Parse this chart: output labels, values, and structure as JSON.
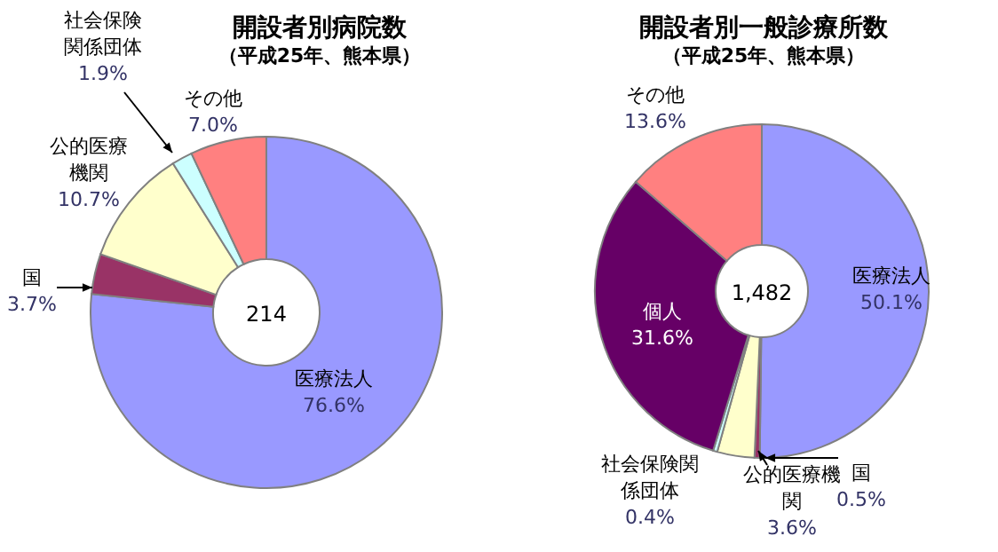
{
  "chart_data": [
    {
      "type": "donut",
      "title": "開設者別病院数",
      "subtitle": "（平成25年、熊本県）",
      "categories": [
        "医療法人",
        "国",
        "公的医療機関",
        "社会保険関係団体",
        "その他"
      ],
      "values": [
        76.6,
        3.7,
        10.7,
        1.9,
        7.0
      ],
      "colors": [
        "#9999ff",
        "#993366",
        "#ffffcc",
        "#ccffff",
        "#ff8080"
      ],
      "value_labels": [
        "76.6%",
        "3.7%",
        "10.7%",
        "1.9%",
        "7.0%"
      ],
      "annotations": [
        "214"
      ]
    },
    {
      "type": "donut",
      "title": "開設者別一般診療所数",
      "subtitle": "（平成25年、熊本県）",
      "categories": [
        "医療法人",
        "国",
        "公的医療機関",
        "社会保険関係団体",
        "個人",
        "その他"
      ],
      "values": [
        50.1,
        0.5,
        3.6,
        0.4,
        31.6,
        13.6
      ],
      "colors": [
        "#9999ff",
        "#993366",
        "#ffffcc",
        "#ccffff",
        "#660066",
        "#ff8080"
      ],
      "value_labels": [
        "50.1%",
        "0.5%",
        "3.6%",
        "0.4%",
        "31.6%",
        "13.6%"
      ],
      "annotations": [
        "1,482"
      ]
    }
  ]
}
